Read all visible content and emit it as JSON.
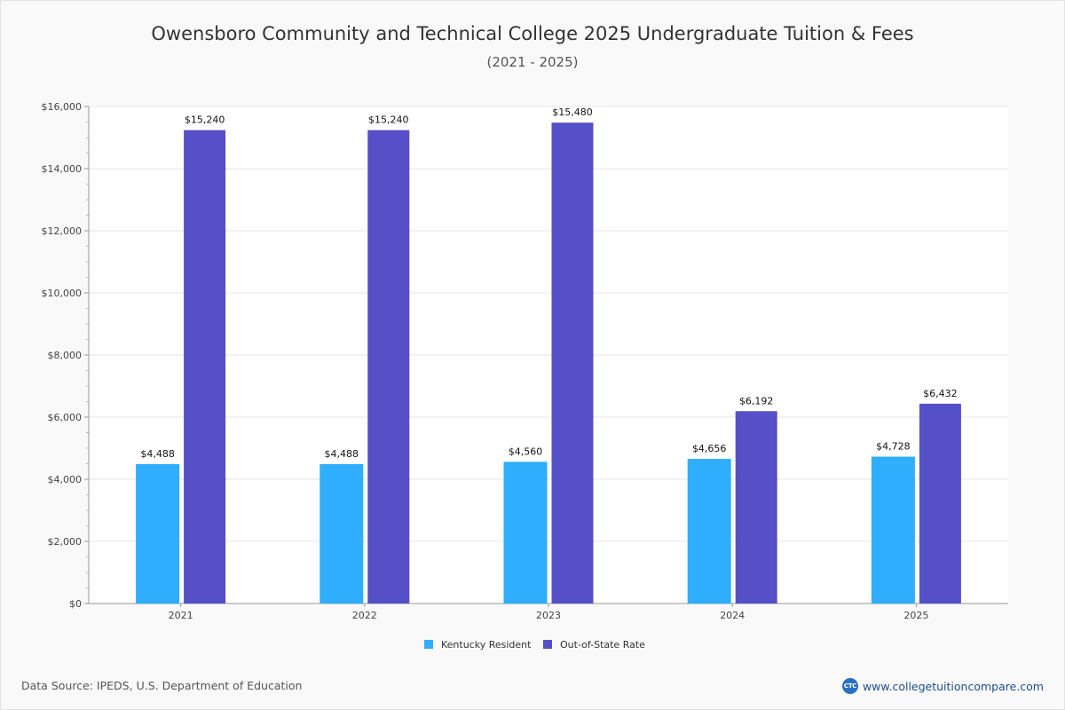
{
  "chart_data": {
    "type": "bar",
    "title": "Owensboro Community and Technical College 2025 Undergraduate Tuition & Fees",
    "subtitle": "(2021 - 2025)",
    "categories": [
      "2021",
      "2022",
      "2023",
      "2024",
      "2025"
    ],
    "series": [
      {
        "name": "Kentucky Resident",
        "color": "#2eaefc",
        "values": [
          4488,
          4488,
          4560,
          4656,
          4728
        ],
        "labels": [
          "$4,488",
          "$4,488",
          "$4,560",
          "$4,656",
          "$4,728"
        ]
      },
      {
        "name": "Out-of-State Rate",
        "color": "#554fc8",
        "values": [
          15240,
          15240,
          15480,
          6192,
          6432
        ],
        "labels": [
          "$15,240",
          "$15,240",
          "$15,480",
          "$6,192",
          "$6,432"
        ]
      }
    ],
    "ylim": [
      0,
      16000
    ],
    "yticks": [
      0,
      2000,
      4000,
      6000,
      8000,
      10000,
      12000,
      14000,
      16000
    ],
    "ytick_labels": [
      "$0",
      "$2,000",
      "$4,000",
      "$6,000",
      "$8,000",
      "$10,000",
      "$12,000",
      "$14,000",
      "$16,000"
    ],
    "grid": true,
    "legend": "bottom-center"
  },
  "footer": {
    "source": "Data Source: IPEDS, U.S. Department of Education",
    "brand_logo": "CTC",
    "brand": "www.collegetuitioncompare.com"
  }
}
